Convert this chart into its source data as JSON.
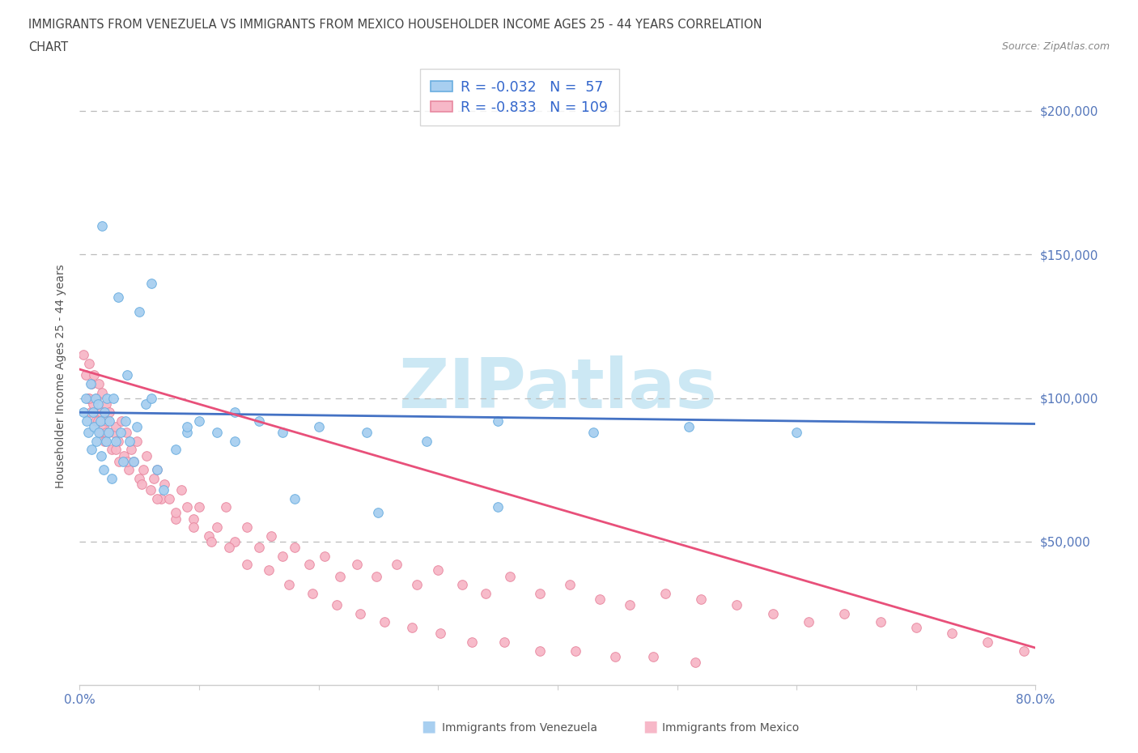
{
  "title_line1": "IMMIGRANTS FROM VENEZUELA VS IMMIGRANTS FROM MEXICO HOUSEHOLDER INCOME AGES 25 - 44 YEARS CORRELATION",
  "title_line2": "CHART",
  "source_text": "Source: ZipAtlas.com",
  "ylabel": "Householder Income Ages 25 - 44 years",
  "xlim": [
    0.0,
    0.8
  ],
  "ylim": [
    0,
    215000
  ],
  "xticks": [
    0.0,
    0.1,
    0.2,
    0.3,
    0.4,
    0.5,
    0.6,
    0.7,
    0.8
  ],
  "xticklabels": [
    "0.0%",
    "",
    "",
    "",
    "",
    "",
    "",
    "",
    "80.0%"
  ],
  "yticks": [
    0,
    50000,
    100000,
    150000,
    200000
  ],
  "yticklabels": [
    "",
    "$50,000",
    "$100,000",
    "$150,000",
    "$200,000"
  ],
  "background_color": "#ffffff",
  "watermark_text": "ZIPatlas",
  "watermark_color": "#cce8f4",
  "venezuela_color": "#a8cff0",
  "venezuela_edge": "#6aaee0",
  "mexico_color": "#f7b8c8",
  "mexico_edge": "#e888a0",
  "venezuela_line_color": "#4472c4",
  "mexico_line_color": "#e8507a",
  "legend_label1": "R = -0.032   N =  57",
  "legend_label2": "R = -0.833   N = 109",
  "ven_line_y0": 95000,
  "ven_line_y1": 91000,
  "mex_line_y0": 110000,
  "mex_line_y1": 13000,
  "venezuela_scatter_x": [
    0.003,
    0.005,
    0.006,
    0.007,
    0.009,
    0.01,
    0.011,
    0.012,
    0.013,
    0.014,
    0.015,
    0.016,
    0.017,
    0.018,
    0.019,
    0.02,
    0.021,
    0.022,
    0.023,
    0.024,
    0.025,
    0.027,
    0.028,
    0.03,
    0.032,
    0.034,
    0.036,
    0.038,
    0.04,
    0.042,
    0.045,
    0.048,
    0.05,
    0.055,
    0.06,
    0.065,
    0.07,
    0.08,
    0.09,
    0.1,
    0.115,
    0.13,
    0.15,
    0.17,
    0.2,
    0.24,
    0.29,
    0.35,
    0.43,
    0.51,
    0.6,
    0.35,
    0.25,
    0.18,
    0.13,
    0.09,
    0.06
  ],
  "venezuela_scatter_y": [
    95000,
    100000,
    92000,
    88000,
    105000,
    82000,
    95000,
    90000,
    100000,
    85000,
    98000,
    88000,
    92000,
    80000,
    160000,
    75000,
    95000,
    85000,
    100000,
    88000,
    92000,
    72000,
    100000,
    85000,
    135000,
    88000,
    78000,
    92000,
    108000,
    85000,
    78000,
    90000,
    130000,
    98000,
    140000,
    75000,
    68000,
    82000,
    88000,
    92000,
    88000,
    85000,
    92000,
    88000,
    90000,
    88000,
    85000,
    92000,
    88000,
    90000,
    88000,
    62000,
    60000,
    65000,
    95000,
    90000,
    100000
  ],
  "mexico_scatter_x": [
    0.003,
    0.005,
    0.007,
    0.008,
    0.009,
    0.01,
    0.011,
    0.012,
    0.013,
    0.014,
    0.015,
    0.016,
    0.017,
    0.018,
    0.019,
    0.02,
    0.021,
    0.022,
    0.023,
    0.024,
    0.025,
    0.027,
    0.028,
    0.03,
    0.032,
    0.033,
    0.035,
    0.037,
    0.039,
    0.041,
    0.043,
    0.045,
    0.048,
    0.05,
    0.053,
    0.056,
    0.059,
    0.062,
    0.065,
    0.068,
    0.071,
    0.075,
    0.08,
    0.085,
    0.09,
    0.095,
    0.1,
    0.108,
    0.115,
    0.122,
    0.13,
    0.14,
    0.15,
    0.16,
    0.17,
    0.18,
    0.192,
    0.205,
    0.218,
    0.232,
    0.248,
    0.265,
    0.282,
    0.3,
    0.32,
    0.34,
    0.36,
    0.385,
    0.41,
    0.435,
    0.46,
    0.49,
    0.52,
    0.55,
    0.58,
    0.61,
    0.64,
    0.67,
    0.7,
    0.73,
    0.76,
    0.79,
    0.008,
    0.015,
    0.022,
    0.03,
    0.04,
    0.052,
    0.065,
    0.08,
    0.095,
    0.11,
    0.125,
    0.14,
    0.158,
    0.175,
    0.195,
    0.215,
    0.235,
    0.255,
    0.278,
    0.302,
    0.328,
    0.355,
    0.385,
    0.415,
    0.448,
    0.48,
    0.515
  ],
  "mexico_scatter_y": [
    115000,
    108000,
    100000,
    112000,
    95000,
    105000,
    98000,
    108000,
    92000,
    100000,
    95000,
    105000,
    88000,
    95000,
    102000,
    90000,
    85000,
    98000,
    92000,
    88000,
    95000,
    82000,
    88000,
    90000,
    85000,
    78000,
    92000,
    80000,
    88000,
    75000,
    82000,
    78000,
    85000,
    72000,
    75000,
    80000,
    68000,
    72000,
    75000,
    65000,
    70000,
    65000,
    58000,
    68000,
    62000,
    58000,
    62000,
    52000,
    55000,
    62000,
    50000,
    55000,
    48000,
    52000,
    45000,
    48000,
    42000,
    45000,
    38000,
    42000,
    38000,
    42000,
    35000,
    40000,
    35000,
    32000,
    38000,
    32000,
    35000,
    30000,
    28000,
    32000,
    30000,
    28000,
    25000,
    22000,
    25000,
    22000,
    20000,
    18000,
    15000,
    12000,
    100000,
    92000,
    88000,
    82000,
    78000,
    70000,
    65000,
    60000,
    55000,
    50000,
    48000,
    42000,
    40000,
    35000,
    32000,
    28000,
    25000,
    22000,
    20000,
    18000,
    15000,
    15000,
    12000,
    12000,
    10000,
    10000,
    8000
  ]
}
